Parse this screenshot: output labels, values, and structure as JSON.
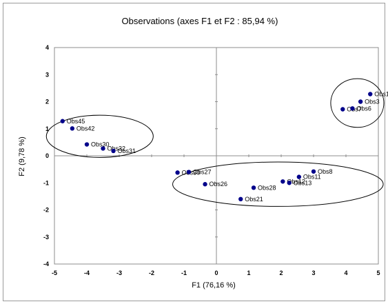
{
  "chart_data": {
    "type": "scatter",
    "title": "Observations (axes F1 et F2 : 85,94 %)",
    "xlabel": "F1 (76,16 %)",
    "ylabel": "F2 (9,78 %)",
    "xlim": [
      -5,
      5
    ],
    "ylim": [
      -4,
      4
    ],
    "xticks": [
      "-5",
      "-4",
      "-3",
      "-2",
      "-1",
      "0",
      "1",
      "2",
      "3",
      "4",
      "5"
    ],
    "yticks": [
      "-4",
      "-3",
      "-2",
      "-1",
      "0",
      "1",
      "2",
      "3",
      "4"
    ],
    "marker_color": "#00008B",
    "grid": false,
    "points": [
      {
        "x": -4.75,
        "y": 1.28,
        "label": "Obs45"
      },
      {
        "x": -4.45,
        "y": 1.01,
        "label": "Obs42"
      },
      {
        "x": -4.0,
        "y": 0.42,
        "label": "Obs30"
      },
      {
        "x": -3.5,
        "y": 0.27,
        "label": "Obs32"
      },
      {
        "x": -3.18,
        "y": 0.18,
        "label": "Obs31"
      },
      {
        "x": -1.2,
        "y": -0.62,
        "label": "Obs30"
      },
      {
        "x": -0.85,
        "y": -0.6,
        "label": "Obs27"
      },
      {
        "x": -0.35,
        "y": -1.05,
        "label": "Obs26"
      },
      {
        "x": 0.75,
        "y": -1.6,
        "label": "Obs21"
      },
      {
        "x": 1.15,
        "y": -1.18,
        "label": "Obs28"
      },
      {
        "x": 2.05,
        "y": -0.95,
        "label": "Obs12"
      },
      {
        "x": 2.25,
        "y": -1.0,
        "label": "Obs13"
      },
      {
        "x": 2.55,
        "y": -0.78,
        "label": "Obs11"
      },
      {
        "x": 3.0,
        "y": -0.58,
        "label": "Obs8"
      },
      {
        "x": 3.9,
        "y": 1.72,
        "label": "Obs7"
      },
      {
        "x": 4.2,
        "y": 1.75,
        "label": "Obs6"
      },
      {
        "x": 4.45,
        "y": 2.0,
        "label": "Obs3"
      },
      {
        "x": 4.75,
        "y": 2.28,
        "label": "Obs1"
      }
    ],
    "ellipses": [
      {
        "cx": -3.6,
        "cy": 0.72,
        "rx": 1.65,
        "ry": 0.78
      },
      {
        "cx": 1.9,
        "cy": -1.05,
        "rx": 3.25,
        "ry": 0.82
      },
      {
        "cx": 4.35,
        "cy": 1.95,
        "rx": 0.82,
        "ry": 0.9
      }
    ]
  }
}
